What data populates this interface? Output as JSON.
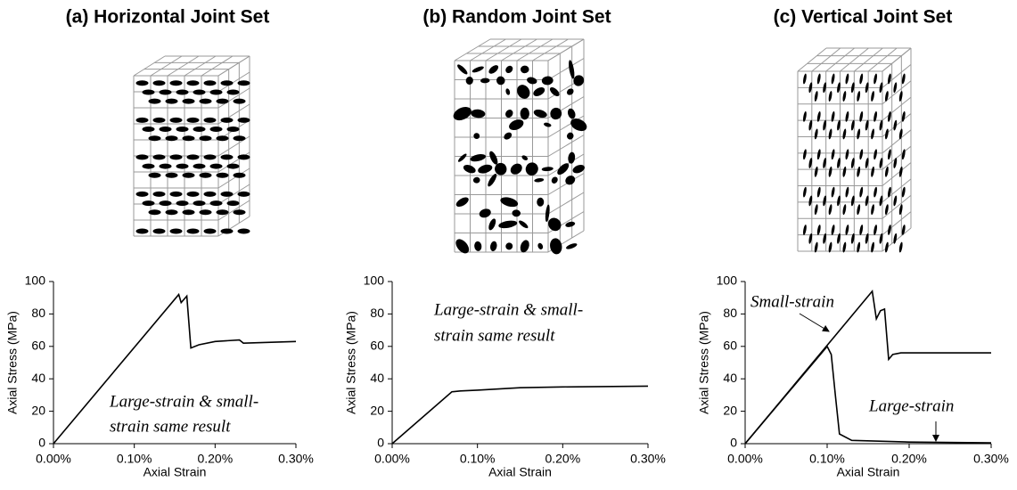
{
  "chart_data": [
    {
      "type": "line",
      "title": "(a) Horizontal Joint Set",
      "x_label": "Axial Strain",
      "y_label": "Axial Stress (MPa)",
      "annotation": [
        "Large-strain & small-",
        "strain same result"
      ],
      "series": [
        {
          "color": "#000000",
          "x": [
            0,
            0.155,
            0.158,
            0.165,
            0.17,
            0.18,
            0.2,
            0.23,
            0.235,
            0.3
          ],
          "values": [
            0,
            92,
            87,
            91,
            59,
            61,
            63,
            64,
            62,
            63
          ]
        }
      ],
      "xlim": [
        0,
        0.3
      ],
      "xticks": [
        {
          "value": 0,
          "label": "0.00%"
        },
        {
          "value": 0.1,
          "label": "0.10%"
        },
        {
          "value": 0.2,
          "label": "0.20%"
        },
        {
          "value": 0.3,
          "label": "0.30%"
        }
      ],
      "ylim": [
        0,
        100
      ],
      "yticks": [
        0,
        20,
        40,
        60,
        80,
        100
      ]
    },
    {
      "type": "line",
      "title": "(b) Random Joint Set",
      "x_label": "Axial Strain",
      "y_label": "Axial Stress (MPa)",
      "annotation": [
        "Large-strain & small-",
        "strain same result"
      ],
      "series": [
        {
          "color": "#000000",
          "x": [
            0,
            0.07,
            0.08,
            0.1,
            0.15,
            0.2,
            0.3
          ],
          "values": [
            0,
            32,
            32.5,
            33,
            34.5,
            35,
            35.5
          ]
        }
      ],
      "xlim": [
        0,
        0.3
      ],
      "xticks": [
        {
          "value": 0,
          "label": "0.00%"
        },
        {
          "value": 0.1,
          "label": "0.10%"
        },
        {
          "value": 0.2,
          "label": "0.20%"
        },
        {
          "value": 0.3,
          "label": "0.30%"
        }
      ],
      "ylim": [
        0,
        100
      ],
      "yticks": [
        0,
        20,
        40,
        60,
        80,
        100
      ]
    },
    {
      "type": "line",
      "title": "(c) Vertical Joint Set",
      "x_label": "Axial Strain",
      "y_label": "Axial Stress (MPa)",
      "series": [
        {
          "name": "Small-strain",
          "color": "#000000",
          "x": [
            0,
            0.155,
            0.16,
            0.165,
            0.17,
            0.175,
            0.18,
            0.19,
            0.3
          ],
          "values": [
            0,
            94,
            77,
            82,
            83,
            52,
            55,
            56,
            56
          ]
        },
        {
          "name": "Large-strain",
          "color": "#000000",
          "x": [
            0,
            0.1,
            0.105,
            0.11,
            0.115,
            0.13,
            0.2,
            0.3
          ],
          "values": [
            0,
            60,
            55,
            30,
            6,
            2,
            1,
            0.5
          ]
        }
      ],
      "xlim": [
        0,
        0.3
      ],
      "xticks": [
        {
          "value": 0,
          "label": "0.00%"
        },
        {
          "value": 0.1,
          "label": "0.10%"
        },
        {
          "value": 0.2,
          "label": "0.20%"
        },
        {
          "value": 0.3,
          "label": "0.30%"
        }
      ],
      "ylim": [
        0,
        100
      ],
      "yticks": [
        0,
        20,
        40,
        60,
        80,
        100
      ]
    }
  ]
}
